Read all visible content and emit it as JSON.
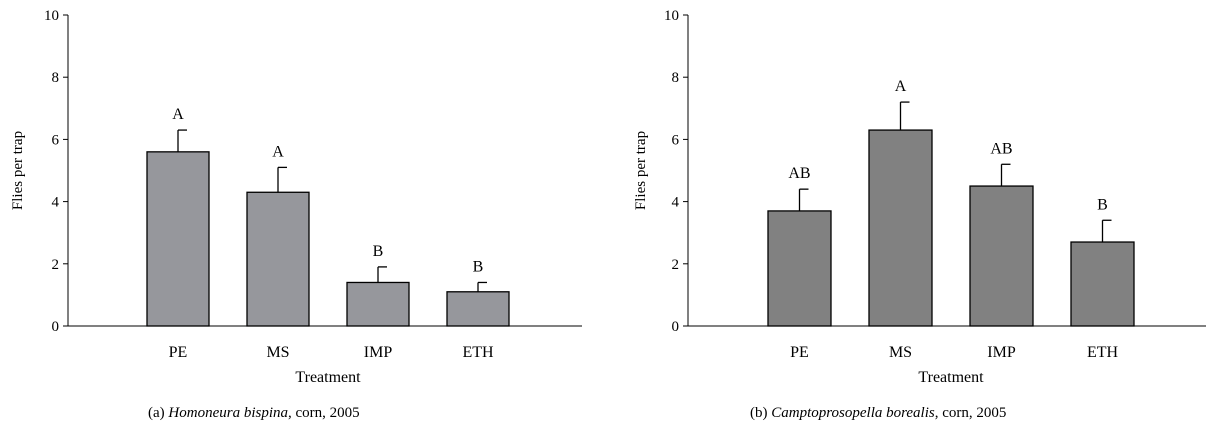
{
  "chart_data": [
    {
      "type": "bar",
      "panel": "(a)",
      "caption": {
        "prefix": "(a)",
        "species": "Homoneura bispina",
        "suffix": ", corn, 2005"
      },
      "xlabel": "Treatment",
      "ylabel": "Flies per trap",
      "ylim": [
        0,
        10
      ],
      "yticks": [
        0,
        2,
        4,
        6,
        8,
        10
      ],
      "categories": [
        "PE",
        "MS",
        "IMP",
        "ETH"
      ],
      "values": [
        5.6,
        4.3,
        1.4,
        1.1
      ],
      "errors": [
        0.7,
        0.8,
        0.5,
        0.3
      ],
      "letters": [
        "A",
        "A",
        "B",
        "B"
      ],
      "bar_color": "#96979c",
      "grid": false
    },
    {
      "type": "bar",
      "panel": "(b)",
      "caption": {
        "prefix": "(b)",
        "species": "Camptoprosopella borealis",
        "suffix": ", corn, 2005"
      },
      "xlabel": "Treatment",
      "ylabel": "Flies per trap",
      "ylim": [
        0,
        10
      ],
      "yticks": [
        0,
        2,
        4,
        6,
        8,
        10
      ],
      "categories": [
        "PE",
        "MS",
        "IMP",
        "ETH"
      ],
      "values": [
        3.7,
        6.3,
        4.5,
        2.7
      ],
      "errors": [
        0.7,
        0.9,
        0.7,
        0.7
      ],
      "letters": [
        "AB",
        "A",
        "AB",
        "B"
      ],
      "bar_color": "#818181",
      "grid": false
    }
  ]
}
